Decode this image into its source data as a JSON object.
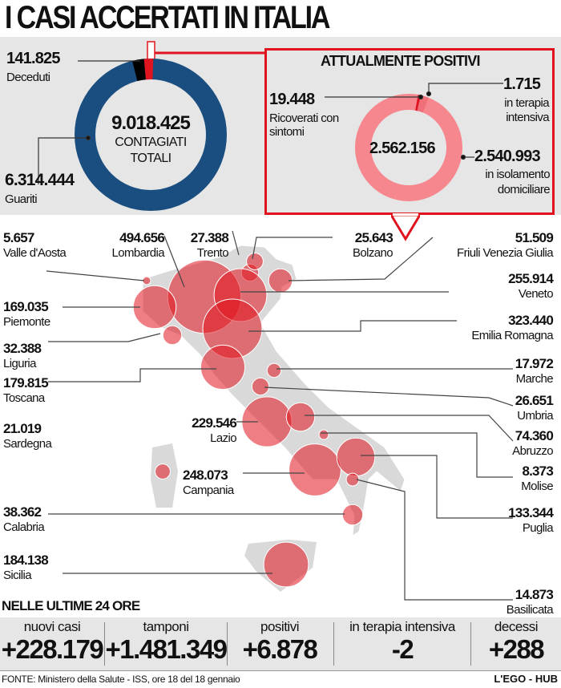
{
  "title": "I CASI ACCERTATI IN ITALIA",
  "chart_data": [
    {
      "type": "pie",
      "style": "donut",
      "center_value": "9.018.425",
      "center_label": [
        "CONTAGIATI",
        "TOTALI"
      ],
      "slices": [
        {
          "label": "Guariti",
          "value": 6314444,
          "display": "6.314.444",
          "color": "#1a4e80"
        },
        {
          "label": "Deceduti",
          "value": 141825,
          "display": "141.825",
          "color": "#000000"
        },
        {
          "label": "Attualmente positivi",
          "color": "#e0141e"
        }
      ]
    },
    {
      "type": "pie",
      "style": "donut",
      "title": "ATTUALMENTE POSITIVI",
      "center_value": "2.562.156",
      "slices": [
        {
          "label": "Ricoverati con sintomi",
          "value": 19448,
          "display": "19.448",
          "color": "#f0707a"
        },
        {
          "label": "in terapia intensiva",
          "value": 1715,
          "display": "1.715",
          "color": "#e0141e"
        },
        {
          "label": "in isolamento domiciliare",
          "value": 2540993,
          "display": "2.540.993",
          "color": "#f7878f"
        }
      ]
    },
    {
      "type": "bubble-map",
      "bubble_color": "#e0141e",
      "regions": [
        {
          "name": "Valle d'Aosta",
          "display": "5.657",
          "value": 5657
        },
        {
          "name": "Lombardia",
          "display": "494.656",
          "value": 494656
        },
        {
          "name": "Trento",
          "display": "27.388",
          "value": 27388
        },
        {
          "name": "Bolzano",
          "display": "25.643",
          "value": 25643
        },
        {
          "name": "Friuli Venezia Giulia",
          "display": "51.509",
          "value": 51509
        },
        {
          "name": "Veneto",
          "display": "255.914",
          "value": 255914
        },
        {
          "name": "Piemonte",
          "display": "169.035",
          "value": 169035
        },
        {
          "name": "Emilia Romagna",
          "display": "323.440",
          "value": 323440
        },
        {
          "name": "Liguria",
          "display": "32.388",
          "value": 32388
        },
        {
          "name": "Toscana",
          "display": "179.815",
          "value": 179815
        },
        {
          "name": "Marche",
          "display": "17.972",
          "value": 17972
        },
        {
          "name": "Umbria",
          "display": "26.651",
          "value": 26651
        },
        {
          "name": "Lazio",
          "display": "229.546",
          "value": 229546
        },
        {
          "name": "Sardegna",
          "display": "21.019",
          "value": 21019
        },
        {
          "name": "Abruzzo",
          "display": "74.360",
          "value": 74360
        },
        {
          "name": "Campania",
          "display": "248.073",
          "value": 248073
        },
        {
          "name": "Molise",
          "display": "8.373",
          "value": 8373
        },
        {
          "name": "Calabria",
          "display": "38.362",
          "value": 38362
        },
        {
          "name": "Puglia",
          "display": "133.344",
          "value": 133344
        },
        {
          "name": "Sicilia",
          "display": "184.138",
          "value": 184138
        },
        {
          "name": "Basilicata",
          "display": "14.873",
          "value": 14873
        }
      ]
    }
  ],
  "last24": {
    "title": "NELLE ULTIME 24 ORE",
    "items": [
      {
        "label": "nuovi casi",
        "value": "+228.179"
      },
      {
        "label": "tamponi",
        "value": "+1.481.349"
      },
      {
        "label": "positivi",
        "value": "+6.878"
      },
      {
        "label": "in terapia intensiva",
        "value": "-2"
      },
      {
        "label": "decessi",
        "value": "+288"
      }
    ]
  },
  "footer": {
    "source": "FONTE: Ministero della Salute - ISS, ore 18 del 18 gennaio",
    "credit": "L'EGO - HUB"
  }
}
